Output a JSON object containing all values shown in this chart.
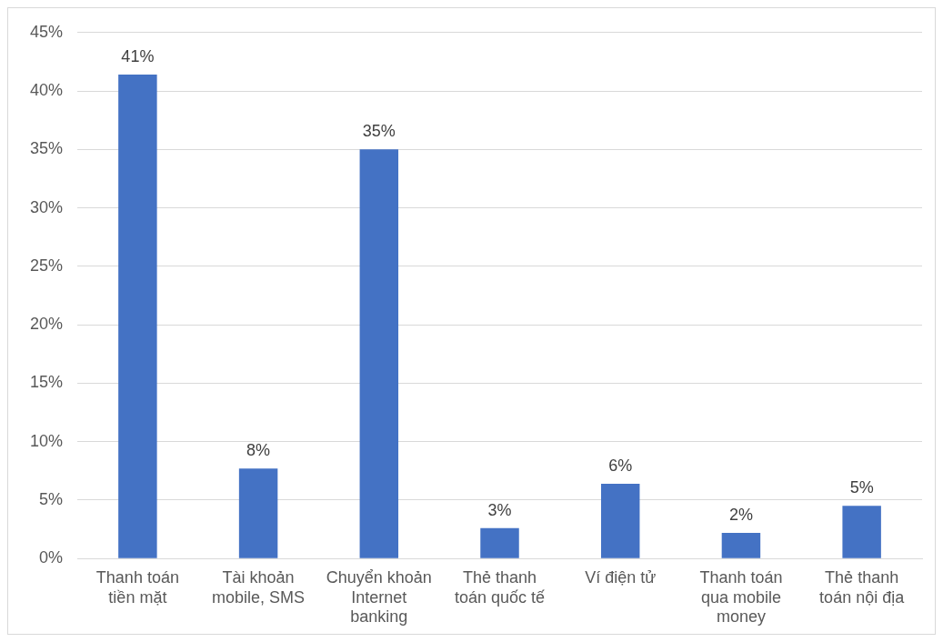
{
  "chart_data": {
    "type": "bar",
    "categories": [
      "Thanh toán tiền mặt",
      "Tài khoản mobile, SMS",
      "Chuyển khoản Internet banking",
      "Thẻ thanh toán quốc tế",
      "Ví điện tử",
      "Thanh toán qua mobile money",
      "Thẻ thanh toán nội địa"
    ],
    "values": [
      41.4,
      7.7,
      35,
      2.6,
      6.4,
      2.2,
      4.5
    ],
    "value_labels": [
      "41%",
      "8%",
      "35%",
      "3%",
      "6%",
      "2%",
      "5%"
    ],
    "color": "#4472c4",
    "ylim": [
      0,
      45
    ],
    "yticks": [
      {
        "value": 0,
        "label": "0%"
      },
      {
        "value": 5,
        "label": "5%"
      },
      {
        "value": 10,
        "label": "10%"
      },
      {
        "value": 15,
        "label": "15%"
      },
      {
        "value": 20,
        "label": "20%"
      },
      {
        "value": 25,
        "label": "25%"
      },
      {
        "value": 30,
        "label": "30%"
      },
      {
        "value": 35,
        "label": "35%"
      },
      {
        "value": 40,
        "label": "40%"
      },
      {
        "value": 45,
        "label": "45%"
      }
    ],
    "grid": "y"
  }
}
